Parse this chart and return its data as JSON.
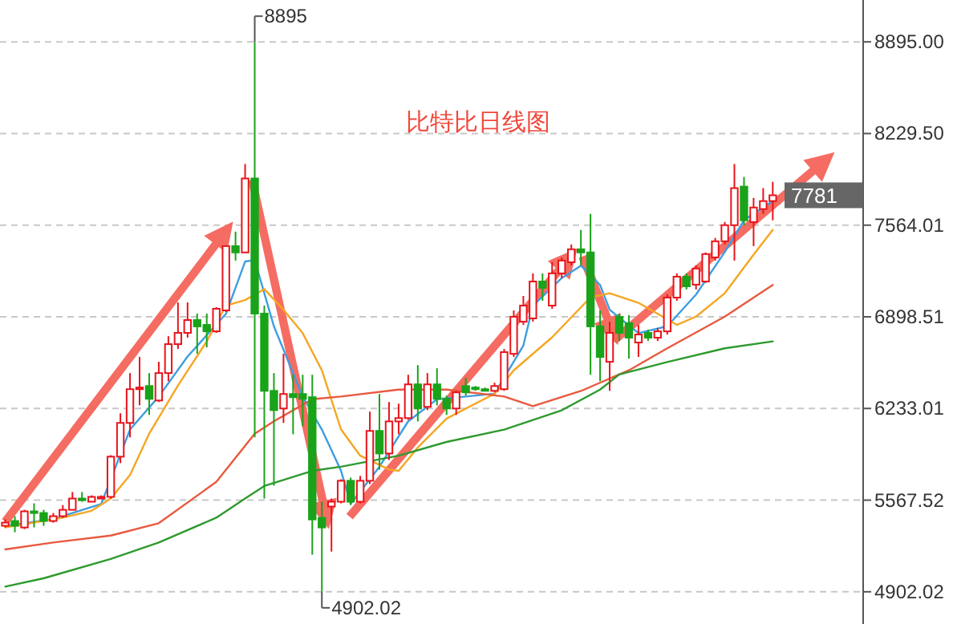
{
  "chart_data": {
    "type": "candlestick",
    "title": "比特比日线图",
    "categories": [
      null,
      null,
      null,
      null,
      null,
      null,
      null,
      null,
      null,
      null,
      null,
      null,
      null,
      null,
      null,
      null,
      null,
      null,
      null,
      null,
      null,
      null,
      null,
      null,
      null,
      null,
      null,
      null,
      null,
      null,
      null,
      null,
      null,
      null,
      null,
      null,
      null,
      null,
      null,
      null,
      null,
      null,
      null,
      null,
      null,
      null,
      null,
      null,
      null,
      null,
      null,
      null,
      null,
      null,
      null,
      null,
      null,
      null,
      null,
      null,
      null,
      null,
      null,
      null,
      null,
      null,
      null,
      null,
      null,
      null,
      null,
      null,
      null,
      null,
      null,
      null,
      null,
      null,
      null,
      null,
      null
    ],
    "ohlc": [
      [
        5381,
        5427,
        5369,
        5404
      ],
      [
        5416,
        5451,
        5334,
        5381
      ],
      [
        5369,
        5497,
        5357,
        5486
      ],
      [
        5486,
        5544,
        5369,
        5474
      ],
      [
        5474,
        5497,
        5381,
        5416
      ],
      [
        5416,
        5474,
        5404,
        5451
      ],
      [
        5451,
        5532,
        5439,
        5497
      ],
      [
        5497,
        5626,
        5497,
        5579
      ],
      [
        5579,
        5626,
        5556,
        5567
      ],
      [
        5556,
        5602,
        5556,
        5591
      ],
      [
        5579,
        5602,
        5579,
        5591
      ],
      [
        5591,
        5894,
        5579,
        5883
      ],
      [
        5883,
        6198,
        5836,
        6128
      ],
      [
        6128,
        6490,
        6023,
        6373
      ],
      [
        6373,
        6607,
        6256,
        6385
      ],
      [
        6396,
        6490,
        6186,
        6303
      ],
      [
        6291,
        6572,
        6280,
        6490
      ],
      [
        6490,
        6758,
        6431,
        6700
      ],
      [
        6700,
        7003,
        6665,
        6782
      ],
      [
        6782,
        7003,
        6747,
        6875
      ],
      [
        6875,
        6922,
        6630,
        6829
      ],
      [
        6840,
        6922,
        6677,
        6793
      ],
      [
        6793,
        6969,
        6782,
        6957
      ],
      [
        6945,
        7412,
        6934,
        7412
      ],
      [
        7412,
        7517,
        7307,
        7366
      ],
      [
        7366,
        8008,
        7366,
        7903
      ],
      [
        7903,
        8895,
        6023,
        6922
      ],
      [
        6922,
        6980,
        5579,
        6361
      ],
      [
        6361,
        6490,
        5672,
        6221
      ],
      [
        6233,
        6630,
        6128,
        6338
      ],
      [
        6338,
        6478,
        6046,
        6315
      ],
      [
        6338,
        6478,
        6104,
        6303
      ],
      [
        6315,
        6478,
        5171,
        5427
      ],
      [
        5439,
        5556,
        4902.02,
        5369
      ],
      [
        5521,
        5579,
        5194,
        5556
      ],
      [
        5556,
        5719,
        5544,
        5708
      ],
      [
        5708,
        5731,
        5532,
        5556
      ],
      [
        5556,
        5743,
        5544,
        5708
      ],
      [
        5708,
        6210,
        5684,
        6070
      ],
      [
        6070,
        6338,
        5789,
        5906
      ],
      [
        5906,
        6280,
        5859,
        6139
      ],
      [
        6139,
        6268,
        6046,
        6163
      ],
      [
        6163,
        6478,
        6151,
        6408
      ],
      [
        6408,
        6548,
        6139,
        6233
      ],
      [
        6245,
        6490,
        6221,
        6408
      ],
      [
        6408,
        6525,
        6256,
        6303
      ],
      [
        6303,
        6326,
        6186,
        6233
      ],
      [
        6233,
        6361,
        6186,
        6350
      ],
      [
        6396,
        6455,
        6326,
        6350
      ],
      [
        6385,
        6396,
        6361,
        6373
      ],
      [
        6373,
        6385,
        6361,
        6361
      ],
      [
        6361,
        6420,
        6350,
        6396
      ],
      [
        6373,
        6665,
        6361,
        6642
      ],
      [
        6630,
        6945,
        6607,
        6899
      ],
      [
        6863,
        7050,
        6840,
        6980
      ],
      [
        6887,
        7214,
        6863,
        7155
      ],
      [
        7155,
        7214,
        7015,
        7109
      ],
      [
        6980,
        7295,
        6957,
        7214
      ],
      [
        7214,
        7330,
        7179,
        7307
      ],
      [
        7295,
        7424,
        7272,
        7389
      ],
      [
        7389,
        7529,
        7272,
        7366
      ],
      [
        7366,
        7646,
        6478,
        6829
      ],
      [
        6829,
        6945,
        6431,
        6607
      ],
      [
        6572,
        6863,
        6361,
        6782
      ],
      [
        6899,
        6922,
        6723,
        6782
      ],
      [
        6852,
        6910,
        6595,
        6747
      ],
      [
        6712,
        6840,
        6607,
        6770
      ],
      [
        6782,
        6805,
        6723,
        6747
      ],
      [
        6747,
        6817,
        6723,
        6793
      ],
      [
        6793,
        7062,
        6770,
        7038
      ],
      [
        7038,
        7214,
        7015,
        7190
      ],
      [
        7190,
        7214,
        7097,
        7120
      ],
      [
        7132,
        7272,
        7097,
        7249
      ],
      [
        7155,
        7366,
        7144,
        7354
      ],
      [
        7330,
        7471,
        7307,
        7447
      ],
      [
        7447,
        7587,
        7424,
        7564
      ],
      [
        7564,
        8008,
        7307,
        7833
      ],
      [
        7844,
        7914,
        7564,
        7599
      ],
      [
        7587,
        7762,
        7412,
        7692
      ],
      [
        7681,
        7833,
        7646,
        7739
      ],
      [
        7739,
        7879,
        7599,
        7781
      ]
    ],
    "colors": [
      "#e8141b",
      "#1aa31a",
      "#e8141b",
      "#1aa31a",
      "#1aa31a",
      "#e8141b",
      "#e8141b",
      "#e8141b",
      "#1aa31a",
      "#e8141b",
      "#e8141b",
      "#e8141b",
      "#e8141b",
      "#e8141b",
      "#e8141b",
      "#1aa31a",
      "#e8141b",
      "#e8141b",
      "#e8141b",
      "#e8141b",
      "#1aa31a",
      "#1aa31a",
      "#e8141b",
      "#e8141b",
      "#1aa31a",
      "#e8141b",
      "#1aa31a",
      "#1aa31a",
      "#1aa31a",
      "#e8141b",
      "#1aa31a",
      "#1aa31a",
      "#1aa31a",
      "#1aa31a",
      "#e8141b",
      "#e8141b",
      "#1aa31a",
      "#e8141b",
      "#e8141b",
      "#1aa31a",
      "#e8141b",
      "#e8141b",
      "#e8141b",
      "#1aa31a",
      "#e8141b",
      "#1aa31a",
      "#1aa31a",
      "#e8141b",
      "#1aa31a",
      "#1aa31a",
      "#1aa31a",
      "#e8141b",
      "#e8141b",
      "#e8141b",
      "#e8141b",
      "#e8141b",
      "#1aa31a",
      "#e8141b",
      "#e8141b",
      "#e8141b",
      "#1aa31a",
      "#1aa31a",
      "#1aa31a",
      "#e8141b",
      "#1aa31a",
      "#1aa31a",
      "#e8141b",
      "#1aa31a",
      "#e8141b",
      "#e8141b",
      "#e8141b",
      "#1aa31a",
      "#e8141b",
      "#e8141b",
      "#e8141b",
      "#e8141b",
      "#e8141b",
      "#1aa31a",
      "#e8141b",
      "#e8141b",
      "#e8141b"
    ],
    "series": [
      {
        "type": "line",
        "color": "#3d9ee0",
        "values": [
          5380,
          null,
          null,
          null,
          null,
          5430,
          null,
          null,
          null,
          null,
          5540,
          null,
          null,
          6080,
          null,
          null,
          6320,
          null,
          null,
          6610,
          null,
          null,
          null,
          6920,
          null,
          7300,
          7310,
          null,
          6830,
          null,
          null,
          6320,
          null,
          6080,
          null,
          5780,
          5540,
          null,
          null,
          5810,
          null,
          null,
          6140,
          null,
          null,
          6300,
          null,
          null,
          6320,
          null,
          null,
          6340,
          null,
          null,
          6690,
          6980,
          null,
          null,
          7180,
          null,
          7270,
          null,
          7130,
          6950,
          null,
          null,
          6780,
          null,
          null,
          6830,
          null,
          null,
          7060,
          null,
          null,
          7370,
          null,
          7600,
          null,
          null,
          7740
        ]
      },
      {
        "type": "line",
        "color": "#f5a623",
        "values": [
          5370,
          null,
          null,
          null,
          null,
          null,
          5440,
          null,
          null,
          5490,
          null,
          5580,
          null,
          5750,
          null,
          6050,
          null,
          null,
          6400,
          null,
          null,
          6720,
          null,
          6980,
          null,
          7020,
          null,
          7100,
          null,
          6950,
          null,
          6780,
          null,
          6510,
          null,
          6080,
          null,
          5890,
          null,
          null,
          5790,
          5780,
          null,
          5950,
          null,
          null,
          6160,
          null,
          null,
          null,
          null,
          6340,
          null,
          6510,
          null,
          null,
          null,
          6750,
          null,
          null,
          null,
          7040,
          null,
          7070,
          null,
          null,
          7000,
          null,
          null,
          null,
          6840,
          null,
          6900,
          null,
          null,
          7070,
          null,
          null,
          7350,
          null,
          7530
        ]
      },
      {
        "type": "line",
        "color": "#e8593e",
        "values": [
          5210,
          null,
          null,
          null,
          null,
          5260,
          null,
          null,
          null,
          null,
          null,
          5310,
          null,
          null,
          null,
          null,
          5400,
          null,
          null,
          null,
          null,
          null,
          5700,
          null,
          null,
          null,
          6050,
          null,
          6140,
          null,
          null,
          null,
          6300,
          null,
          null,
          6320,
          null,
          null,
          null,
          null,
          null,
          6370,
          null,
          null,
          null,
          null,
          6370,
          null,
          null,
          null,
          null,
          null,
          6320,
          null,
          null,
          6250,
          null,
          null,
          null,
          null,
          6360,
          null,
          null,
          null,
          null,
          6510,
          null,
          null,
          null,
          6670,
          null,
          null,
          null,
          null,
          null,
          6900,
          null,
          null,
          null,
          null,
          7130
        ]
      },
      {
        "type": "line",
        "color": "#2e9a2e",
        "values": [
          4940,
          null,
          null,
          null,
          5000,
          null,
          null,
          null,
          null,
          null,
          null,
          5140,
          null,
          null,
          null,
          null,
          5260,
          null,
          null,
          null,
          null,
          null,
          5440,
          null,
          null,
          5580,
          null,
          5670,
          null,
          null,
          null,
          null,
          5780,
          null,
          null,
          5810,
          null,
          null,
          null,
          null,
          null,
          5890,
          null,
          null,
          null,
          null,
          5990,
          null,
          null,
          null,
          null,
          null,
          6080,
          null,
          null,
          null,
          null,
          null,
          6220,
          null,
          null,
          null,
          6370,
          null,
          6480,
          null,
          null,
          null,
          null,
          6570,
          null,
          null,
          null,
          null,
          null,
          6670,
          null,
          null,
          null,
          null,
          6720
        ]
      }
    ],
    "ylim": [
      4668,
      9199
    ],
    "yticks": [
      {
        "value": 8895,
        "label": "8895.00"
      },
      {
        "value": 8229.5,
        "label": "8229.50"
      },
      {
        "value": 7564.01,
        "label": "7564.01"
      },
      {
        "value": 6898.51,
        "label": "6898.51"
      },
      {
        "value": 6233.01,
        "label": "6233.01"
      },
      {
        "value": 5567.52,
        "label": "5567.52"
      },
      {
        "value": 4902.02,
        "label": "4902.02"
      }
    ],
    "grid": "y",
    "tick_labels": "y",
    "annotations": [
      "8895",
      "4902.02",
      "7781"
    ]
  }
}
